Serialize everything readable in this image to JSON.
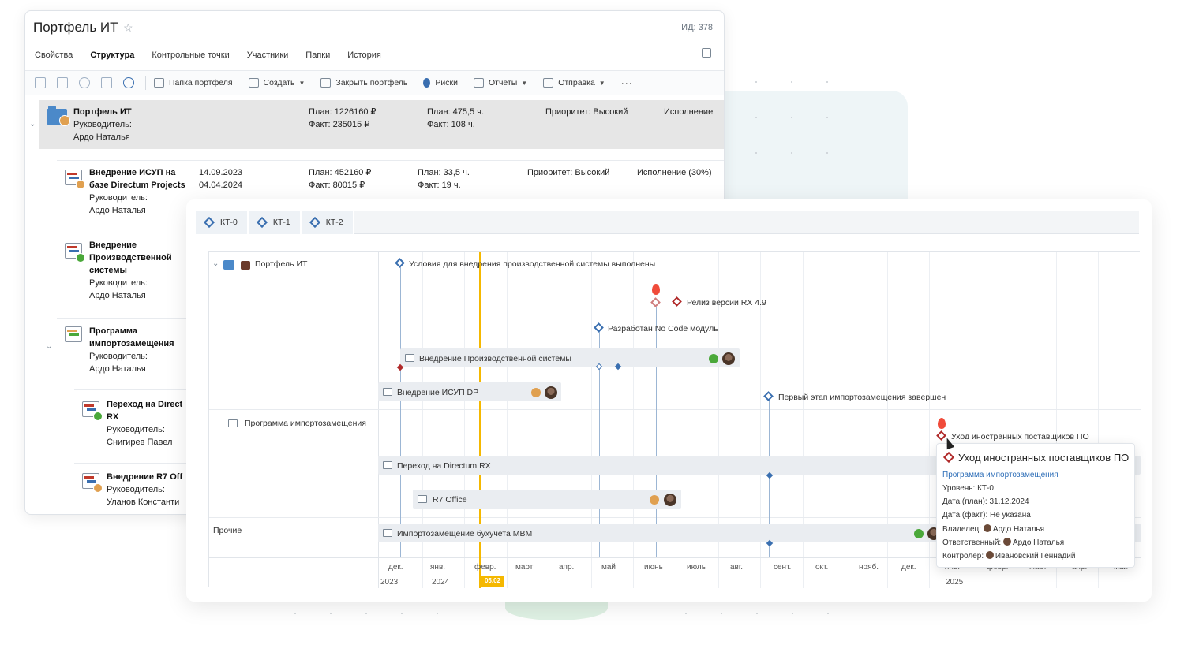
{
  "portfolio_window": {
    "title": "Портфель ИТ",
    "id_label": "ИД: 378",
    "tabs": [
      "Свойства",
      "Структура",
      "Контрольные точки",
      "Участники",
      "Папки",
      "История"
    ],
    "toolbar": {
      "folder": "Папка портфеля",
      "create": "Создать",
      "close": "Закрыть портфель",
      "risks": "Риски",
      "reports": "Отчеты",
      "send": "Отправка",
      "more": "···"
    },
    "rows": [
      {
        "name": "Портфель ИТ",
        "manager_label": "Руководитель:",
        "manager": "Ардо Наталья",
        "plan_money": "План: 1226160 ₽",
        "fact_money": "Факт: 235015 ₽",
        "plan_hours": "План: 475,5 ч.",
        "fact_hours": "Факт: 108 ч.",
        "priority": "Приоритет: Высокий",
        "status": "Исполнение"
      },
      {
        "name_line1": "Внедрение ИСУП на",
        "name_line2": "базе Directum Projects",
        "manager_label": "Руководитель:",
        "manager": "Ардо Наталья",
        "start": "14.09.2023",
        "end": "04.04.2024",
        "plan_money": "План: 452160 ₽",
        "fact_money": "Факт: 80015 ₽",
        "plan_hours": "План: 33,5 ч.",
        "fact_hours": "Факт: 19 ч.",
        "priority": "Приоритет: Высокий",
        "status": "Исполнение (30%)"
      },
      {
        "name_line1": "Внедрение",
        "name_line2": "Производственной",
        "name_line3": "системы",
        "manager_label": "Руководитель:",
        "manager": "Ардо Наталья"
      },
      {
        "name_line1": "Программа",
        "name_line2": "импортозамещения",
        "manager_label": "Руководитель:",
        "manager": "Ардо Наталья"
      },
      {
        "name_line1": "Переход на Direct",
        "name_line2": "RX",
        "manager_label": "Руководитель:",
        "manager": "Снигирев Павел"
      },
      {
        "name_line1": "Внедрение R7 Off",
        "manager_label": "Руководитель:",
        "manager": "Уланов Константи"
      }
    ]
  },
  "timeline_window": {
    "kt_tabs": [
      "КТ-0",
      "КТ-1",
      "КТ-2"
    ],
    "groups": [
      "Портфель ИТ",
      "Программа импортозамещения",
      "Прочие"
    ],
    "milestones": {
      "m1": "Условия для внедрения производственной системы выполнены",
      "m2": "Релиз версии RX 4.9",
      "m3": "Разработан No Code модуль",
      "m4": "Первый этап импортозамещения завершен",
      "m5": "Уход иностранных поставщиков ПО"
    },
    "tasks": {
      "t1": "Внедрение Производственной системы",
      "t2": "Внедрение ИСУП DP",
      "t3": "Переход на Directum RX",
      "t4": "R7 Office",
      "t5": "Импортозамещение бухучета MBM"
    },
    "months": [
      "дек.",
      "янв.",
      "февр.",
      "март",
      "апр.",
      "май",
      "июнь",
      "июль",
      "авг.",
      "сент.",
      "окт.",
      "нояб.",
      "дек.",
      "янв.",
      "февр.",
      "март",
      "апр.",
      "май"
    ],
    "years": [
      "2023",
      "2024",
      "2025"
    ],
    "today_flag": "05.02",
    "tooltip": {
      "title": "Уход иностранных поставщиков ПО",
      "link": "Программа импортозамещения",
      "level": "Уровень: КТ-0",
      "plan_date": "Дата (план): 31.12.2024",
      "fact_date": "Дата (факт): Не указана",
      "owner_label": "Владелец:",
      "owner": "Ардо Наталья",
      "responsible_label": "Ответственный:",
      "responsible": "Ардо Наталья",
      "controller_label": "Контролер:",
      "controller": "Ивановский Геннадий"
    }
  },
  "colors": {
    "accent_blue": "#3a6fb0",
    "milestone_red": "#b02a2a",
    "today": "#f5b800",
    "status_green": "#4aa83a",
    "status_orange": "#e0a050"
  }
}
